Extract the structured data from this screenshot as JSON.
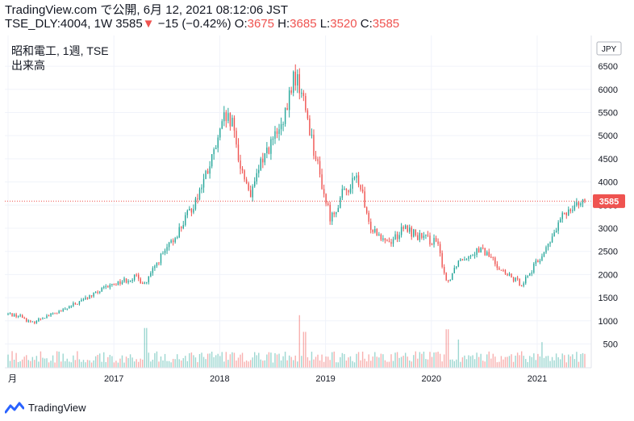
{
  "header": {
    "source_line": "TradingView.com で公開, 6月 12, 2021 08:12:06 JST",
    "symbol": "TSE_DLY:4004, 1W",
    "last": "3585",
    "down_arrow": "▼",
    "change": "−15 (−0.42%)",
    "o_label": "O:",
    "o_value": "3675",
    "h_label": "H:",
    "h_value": "3685",
    "l_label": "L:",
    "l_value": "3520",
    "c_label": "C:",
    "c_value": "3585"
  },
  "legend": {
    "instrument": "昭和電工, 1週, TSE",
    "volume": "出来高"
  },
  "footer": {
    "brand": "TradingView",
    "logo_icon": "tradingview-logo-icon"
  },
  "colors": {
    "up": "#26a69a",
    "down": "#ef5350",
    "last_line": "#ef5350",
    "grid": "#f0f3fa"
  },
  "chart_data": {
    "type": "candlestick",
    "currency_badge": "JPY",
    "last_price_label": "3585",
    "last_price": 3585,
    "y_ticks": [
      500,
      1000,
      1500,
      2000,
      2500,
      3000,
      3500,
      4000,
      4500,
      5000,
      5500,
      6000,
      6500
    ],
    "ylim": [
      230,
      7050
    ],
    "x_ticks": [
      {
        "label": "月",
        "year": 2016.0
      },
      {
        "label": "2017",
        "year": 2017.0
      },
      {
        "label": "2018",
        "year": 2018.0
      },
      {
        "label": "2019",
        "year": 2019.0
      },
      {
        "label": "2020",
        "year": 2020.0
      },
      {
        "label": "2021",
        "year": 2021.0
      }
    ],
    "xlim": [
      2016.0,
      2021.45
    ],
    "anchors": [
      {
        "t": 2016.0,
        "p": 1150
      },
      {
        "t": 2016.12,
        "p": 1100
      },
      {
        "t": 2016.22,
        "p": 950
      },
      {
        "t": 2016.35,
        "p": 1100
      },
      {
        "t": 2016.5,
        "p": 1200
      },
      {
        "t": 2016.75,
        "p": 1500
      },
      {
        "t": 2017.0,
        "p": 1800
      },
      {
        "t": 2017.2,
        "p": 1950
      },
      {
        "t": 2017.3,
        "p": 1800
      },
      {
        "t": 2017.42,
        "p": 2300
      },
      {
        "t": 2017.55,
        "p": 2700
      },
      {
        "t": 2017.75,
        "p": 3500
      },
      {
        "t": 2017.9,
        "p": 4300
      },
      {
        "t": 2018.0,
        "p": 5000
      },
      {
        "t": 2018.05,
        "p": 5400
      },
      {
        "t": 2018.12,
        "p": 5200
      },
      {
        "t": 2018.2,
        "p": 4300
      },
      {
        "t": 2018.3,
        "p": 3700
      },
      {
        "t": 2018.4,
        "p": 4500
      },
      {
        "t": 2018.5,
        "p": 4900
      },
      {
        "t": 2018.6,
        "p": 5200
      },
      {
        "t": 2018.7,
        "p": 6300
      },
      {
        "t": 2018.75,
        "p": 6100
      },
      {
        "t": 2018.82,
        "p": 5500
      },
      {
        "t": 2018.9,
        "p": 4600
      },
      {
        "t": 2019.0,
        "p": 3600
      },
      {
        "t": 2019.05,
        "p": 3200
      },
      {
        "t": 2019.15,
        "p": 3700
      },
      {
        "t": 2019.3,
        "p": 4100
      },
      {
        "t": 2019.35,
        "p": 3700
      },
      {
        "t": 2019.4,
        "p": 3100
      },
      {
        "t": 2019.6,
        "p": 2700
      },
      {
        "t": 2019.75,
        "p": 3000
      },
      {
        "t": 2019.9,
        "p": 2800
      },
      {
        "t": 2020.05,
        "p": 2700
      },
      {
        "t": 2020.15,
        "p": 1800
      },
      {
        "t": 2020.25,
        "p": 2300
      },
      {
        "t": 2020.45,
        "p": 2550
      },
      {
        "t": 2020.55,
        "p": 2400
      },
      {
        "t": 2020.7,
        "p": 2000
      },
      {
        "t": 2020.85,
        "p": 1800
      },
      {
        "t": 2020.95,
        "p": 2100
      },
      {
        "t": 2021.1,
        "p": 2600
      },
      {
        "t": 2021.25,
        "p": 3300
      },
      {
        "t": 2021.35,
        "p": 3550
      },
      {
        "t": 2021.45,
        "p": 3585
      }
    ],
    "volume_scale_max": 2200,
    "volume_events": [
      {
        "t": 2017.3,
        "v": 1550
      },
      {
        "t": 2018.75,
        "v": 2050
      },
      {
        "t": 2018.8,
        "v": 1400
      },
      {
        "t": 2020.15,
        "v": 1500
      },
      {
        "t": 2020.25,
        "v": 1100
      },
      {
        "t": 2021.05,
        "v": 1000
      }
    ]
  }
}
